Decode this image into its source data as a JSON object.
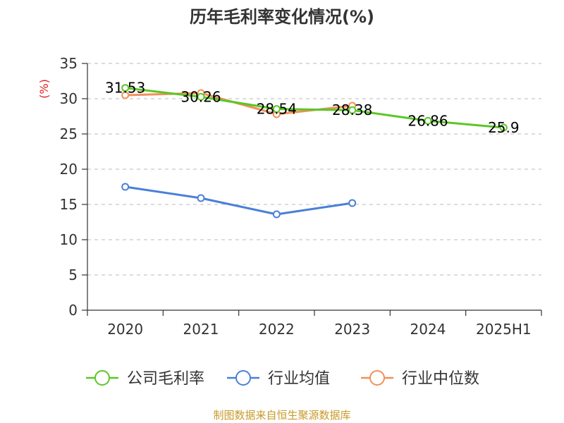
{
  "chart_data": {
    "type": "line",
    "title": "历年毛利率变化情况(%)",
    "ylabel": "(%)",
    "xlabel": "",
    "categories": [
      "2020",
      "2021",
      "2022",
      "2023",
      "2024",
      "2025H1"
    ],
    "ylim": [
      0,
      35
    ],
    "yticks": [
      0,
      5,
      10,
      15,
      20,
      25,
      30,
      35
    ],
    "grid": "horizontal-dashed",
    "legend_position": "bottom",
    "series": [
      {
        "name": "公司毛利率",
        "color": "#5ac726",
        "values": [
          31.53,
          30.26,
          28.54,
          28.38,
          26.86,
          25.9
        ],
        "labels": [
          "31.53",
          "30.26",
          "28.54",
          "28.38",
          "26.86",
          "25.9"
        ]
      },
      {
        "name": "行业均值",
        "color": "#4a7fd9",
        "values": [
          17.5,
          15.9,
          13.6,
          15.2,
          null,
          null
        ]
      },
      {
        "name": "行业中位数",
        "color": "#f0905a",
        "values": [
          30.5,
          30.8,
          27.8,
          29.0,
          null,
          null
        ]
      }
    ]
  },
  "source_text": "制图数据来自恒生聚源数据库"
}
